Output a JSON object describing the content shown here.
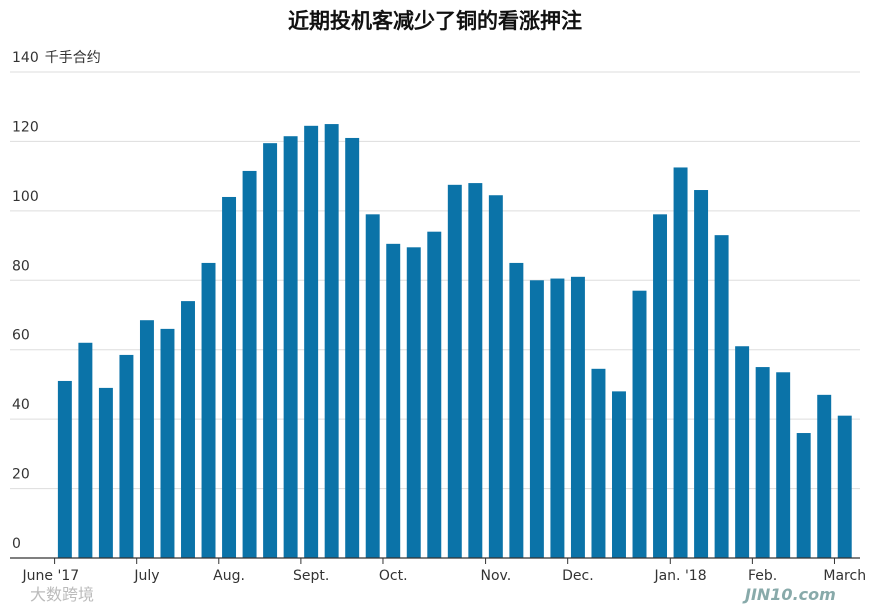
{
  "chart_data": {
    "type": "bar",
    "title": "近期投机客减少了铜的看涨押注",
    "y_unit": "千手合约",
    "categories": [
      "June '17",
      null,
      null,
      null,
      "July",
      null,
      null,
      null,
      "Aug.",
      null,
      null,
      null,
      "Sept.",
      null,
      null,
      null,
      "Oct.",
      null,
      null,
      null,
      null,
      "Nov.",
      null,
      null,
      null,
      "Dec.",
      null,
      null,
      null,
      null,
      "Jan. '18",
      null,
      null,
      null,
      "Feb.",
      null,
      null,
      null,
      "March"
    ],
    "values": [
      51,
      62,
      49,
      58.5,
      68.5,
      66,
      74,
      85,
      104,
      111.5,
      119.5,
      121.5,
      124.5,
      125,
      121,
      99,
      90.5,
      89.5,
      94,
      107.5,
      108,
      104.5,
      85,
      80,
      80.5,
      81,
      54.5,
      48,
      77,
      99,
      112.5,
      106,
      93,
      61,
      55,
      53.5,
      36,
      47,
      41
    ],
    "color": "#0b73a8",
    "ylim": [
      0,
      140
    ],
    "yticks": [
      0,
      20,
      40,
      60,
      80,
      100,
      120,
      140
    ],
    "grid": true,
    "watermarks": [
      "大数跨境",
      "JIN10.com"
    ]
  }
}
